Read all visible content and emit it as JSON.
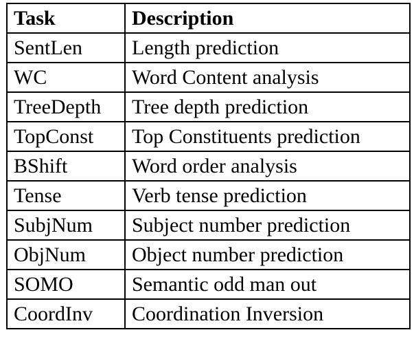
{
  "table": {
    "headers": [
      "Task",
      "Description"
    ],
    "rows": [
      [
        "SentLen",
        "Length prediction"
      ],
      [
        "WC",
        "Word Content analysis"
      ],
      [
        "TreeDepth",
        "Tree depth prediction"
      ],
      [
        "TopConst",
        "Top Constituents prediction"
      ],
      [
        "BShift",
        "Word order analysis"
      ],
      [
        "Tense",
        "Verb tense prediction"
      ],
      [
        "SubjNum",
        "Subject number prediction"
      ],
      [
        "ObjNum",
        "Object number prediction"
      ],
      [
        "SOMO",
        "Semantic odd man out"
      ],
      [
        "CoordInv",
        "Coordination Inversion"
      ]
    ]
  }
}
